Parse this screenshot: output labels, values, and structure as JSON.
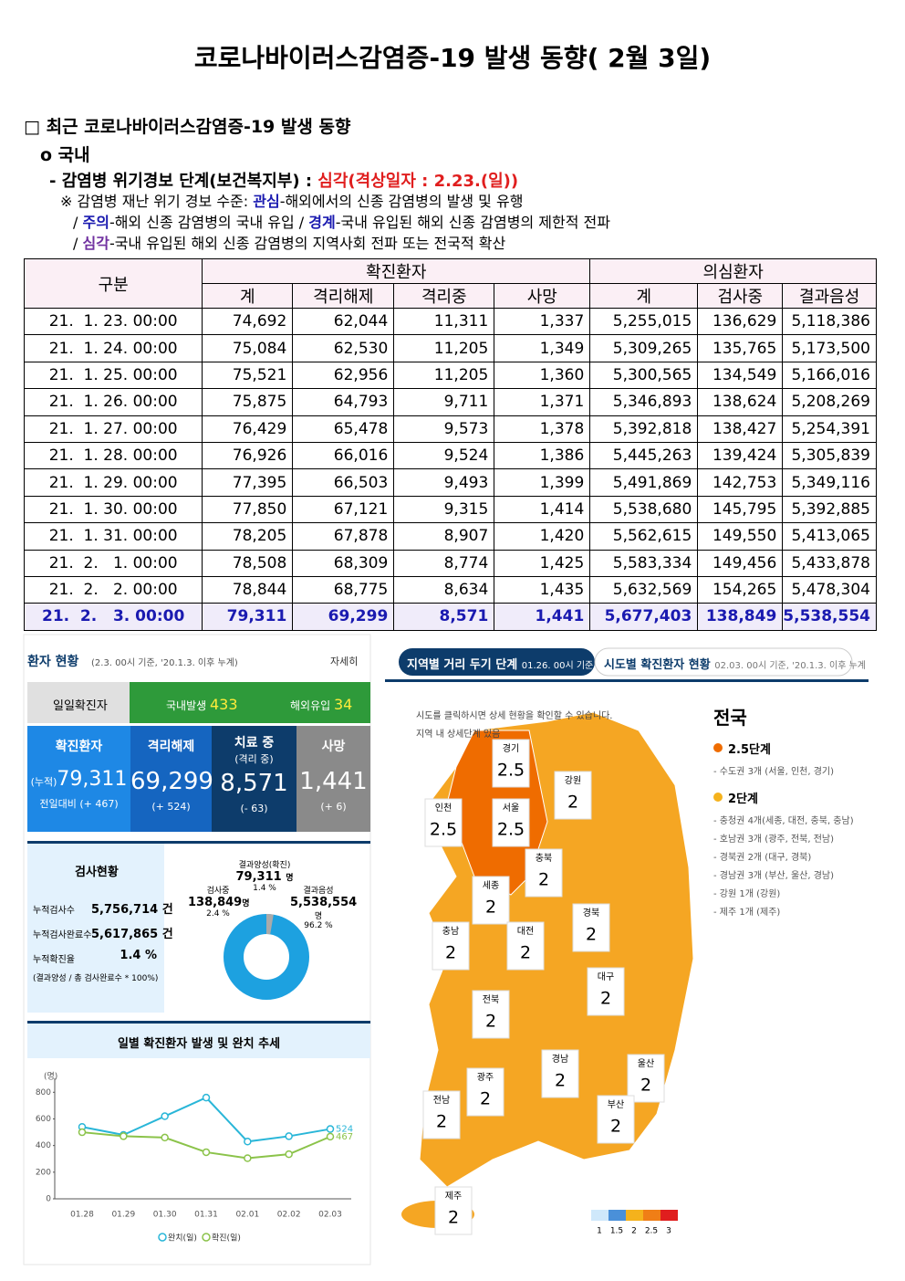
{
  "title": "코로나바이러스감염증-19 발생 동향( 2월 3일)",
  "section": "□ 최근 코로나바이러스감염증-19 발생 동향",
  "subsection": "o 국내",
  "alert": {
    "label": "- 감염병 위기경보 단계(보건복지부) : ",
    "level": "심각(격상일자 : 2.23.(일))"
  },
  "levels": [
    [
      "※ 감염병 재난 위기 경보 수준: ",
      "관심",
      "-해외에서의 신종 감염병의 발생 및 유행"
    ],
    [
      "/ ",
      "주의",
      "-해외 신종 감염병의 국내 유입 / ",
      "경계",
      "-국내 유입된 해외 신종 감염병의 제한적 전파"
    ],
    [
      "/ ",
      "심각",
      "-국내 유입된 해외 신종 감염병의 지역사회 전파 또는 전국적 확산"
    ]
  ],
  "table": {
    "group_header": "구분",
    "groups": [
      {
        "name": "확진환자",
        "columns": [
          "계",
          "격리해제",
          "격리중",
          "사망"
        ]
      },
      {
        "name": "의심환자",
        "columns": [
          "계",
          "검사중",
          "결과음성"
        ]
      }
    ],
    "rows": [
      [
        "21.  1. 23. 00:00",
        "74,692",
        "62,044",
        "11,311",
        "1,337",
        "5,255,015",
        "136,629",
        "5,118,386"
      ],
      [
        "21.  1. 24. 00:00",
        "75,084",
        "62,530",
        "11,205",
        "1,349",
        "5,309,265",
        "135,765",
        "5,173,500"
      ],
      [
        "21.  1. 25. 00:00",
        "75,521",
        "62,956",
        "11,205",
        "1,360",
        "5,300,565",
        "134,549",
        "5,166,016"
      ],
      [
        "21.  1. 26. 00:00",
        "75,875",
        "64,793",
        "9,711",
        "1,371",
        "5,346,893",
        "138,624",
        "5,208,269"
      ],
      [
        "21.  1. 27. 00:00",
        "76,429",
        "65,478",
        "9,573",
        "1,378",
        "5,392,818",
        "138,427",
        "5,254,391"
      ],
      [
        "21.  1. 28. 00:00",
        "76,926",
        "66,016",
        "9,524",
        "1,386",
        "5,445,263",
        "139,424",
        "5,305,839"
      ],
      [
        "21.  1. 29. 00:00",
        "77,395",
        "66,503",
        "9,493",
        "1,399",
        "5,491,869",
        "142,753",
        "5,349,116"
      ],
      [
        "21.  1. 30. 00:00",
        "77,850",
        "67,121",
        "9,315",
        "1,414",
        "5,538,680",
        "145,795",
        "5,392,885"
      ],
      [
        "21.  1. 31. 00:00",
        "78,205",
        "67,878",
        "8,907",
        "1,420",
        "5,562,615",
        "149,550",
        "5,413,065"
      ],
      [
        "21.  2.   1. 00:00",
        "78,508",
        "68,309",
        "8,774",
        "1,425",
        "5,583,334",
        "149,456",
        "5,433,878"
      ],
      [
        "21.  2.   2. 00:00",
        "78,844",
        "68,775",
        "8,634",
        "1,435",
        "5,632,569",
        "154,265",
        "5,478,304"
      ],
      [
        "21.  2.   3. 00:00",
        "79,311",
        "69,299",
        "8,571",
        "1,441",
        "5,677,403",
        "138,849",
        "5,538,554"
      ]
    ]
  },
  "dashboard": {
    "title": "환자 현황",
    "note": "(2.3. 00시 기준, '20.1.3. 이후 누계)",
    "more": "자세히",
    "daily": {
      "label": "일일확진자",
      "domestic": "국내발생",
      "domestic_value": "433",
      "overseas": "해외유입",
      "overseas_value": "34"
    },
    "cards": [
      {
        "title": "확진환자",
        "prefix": "(누적)",
        "value": "79,311",
        "sub": "전일대비 (+ 467)"
      },
      {
        "title": "격리해제",
        "value": "69,299",
        "sub": "(+ 524)"
      },
      {
        "title": "치료 중",
        "title2": "(격리 중)",
        "value": "8,571",
        "sub": "(- 63)"
      },
      {
        "title": "사망",
        "value": "1,441",
        "sub": "(+ 6)"
      }
    ],
    "tests": {
      "title": "검사현황",
      "rows": [
        [
          "누적검사수",
          "5,756,714 건"
        ],
        [
          "누적검사완료수",
          "5,617,865 건"
        ],
        [
          "누적확진율",
          "1.4 %"
        ]
      ],
      "note": "(결과양성 / 총 검사완료수 * 100%)",
      "positive": {
        "label": "결과양성(확진)",
        "value": "79,311",
        "unit": "명",
        "pct": "1.4 %"
      },
      "testing": {
        "label": "검사중",
        "value": "138,849",
        "unit": "명",
        "pct": "2.4 %"
      },
      "negative": {
        "label": "결과음성",
        "value": "5,538,554",
        "unit": "명",
        "pct": "96.2 %"
      }
    }
  },
  "chart_data": {
    "type": "line",
    "title": "일별 확진환자 발생 및 완치 추세",
    "y_label": "(명)",
    "categories": [
      "01.28",
      "01.29",
      "01.30",
      "01.31",
      "02.01",
      "02.02",
      "02.03"
    ],
    "series": [
      {
        "name": "완치(일)",
        "color": "#29b6d8",
        "values": [
          540,
          480,
          620,
          760,
          430,
          470,
          524
        ]
      },
      {
        "name": "확진(일)",
        "color": "#8bc34a",
        "values": [
          500,
          470,
          460,
          350,
          305,
          335,
          467
        ]
      }
    ],
    "ylim": [
      0,
      850
    ],
    "yticks": [
      0,
      200,
      400,
      600,
      800
    ],
    "grid": false
  },
  "map": {
    "tab1": "지역별 거리 두기 단계",
    "tab1_note": "01.26. 00시 기준",
    "tab2": "시도별 확진환자 현황",
    "tab2_note": "02.03. 00시 기준, '20.1.3. 이후 누계",
    "hint": "시도를 클릭하시면 상세 현황을 확인할 수 있습니다.",
    "hint2": "지역 내 상세단계 있음",
    "regions": [
      {
        "name": "경기",
        "level": "2.5"
      },
      {
        "name": "강원",
        "level": "2"
      },
      {
        "name": "인천",
        "level": "2.5"
      },
      {
        "name": "서울",
        "level": "2.5"
      },
      {
        "name": "충북",
        "level": "2"
      },
      {
        "name": "세종",
        "level": "2"
      },
      {
        "name": "경북",
        "level": "2"
      },
      {
        "name": "충남",
        "level": "2"
      },
      {
        "name": "대전",
        "level": "2"
      },
      {
        "name": "대구",
        "level": "2"
      },
      {
        "name": "전북",
        "level": "2"
      },
      {
        "name": "경남",
        "level": "2"
      },
      {
        "name": "울산",
        "level": "2"
      },
      {
        "name": "광주",
        "level": "2"
      },
      {
        "name": "부산",
        "level": "2"
      },
      {
        "name": "전남",
        "level": "2"
      },
      {
        "name": "제주",
        "level": "2"
      }
    ],
    "legend": [
      "1",
      "1.5",
      "2",
      "2.5",
      "3"
    ],
    "side": {
      "title": "전국",
      "groups": [
        {
          "name": "2.5단계",
          "items": [
            "- 수도권 3개 (서울, 인천, 경기)"
          ]
        },
        {
          "name": "2단계",
          "items": [
            "- 충청권 4개(세종, 대전, 충북, 충남)",
            "- 호남권 3개 (광주, 전북, 전남)",
            "- 경북권 2개 (대구, 경북)",
            "- 경남권 3개 (부산, 울산, 경남)",
            "- 강원 1개 (강원)",
            "- 제주 1개 (제주)"
          ]
        }
      ]
    }
  }
}
